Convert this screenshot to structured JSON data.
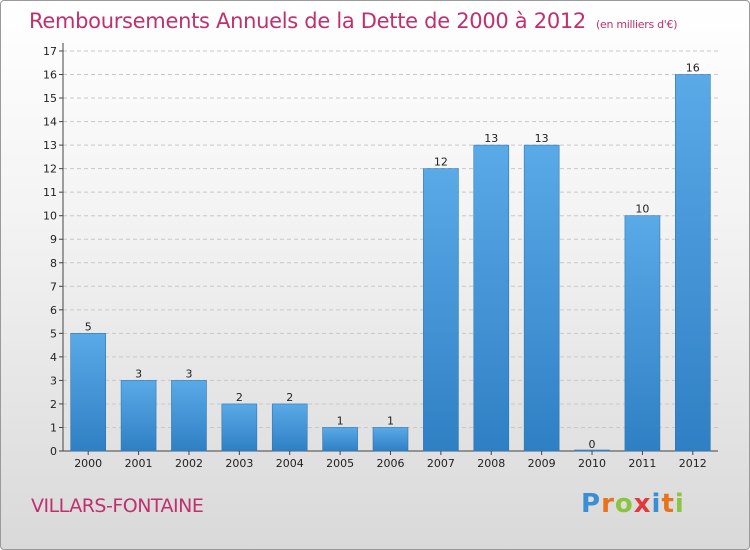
{
  "chart_data": {
    "type": "bar",
    "title": "Remboursements Annuels de la Dette de 2000 à 2012",
    "subtitle": "(en milliers d'€)",
    "categories": [
      "2000",
      "2001",
      "2002",
      "2003",
      "2004",
      "2005",
      "2006",
      "2007",
      "2008",
      "2009",
      "2010",
      "2011",
      "2012"
    ],
    "values": [
      5,
      3,
      3,
      2,
      2,
      1,
      1,
      12,
      13,
      13,
      0,
      10,
      16
    ],
    "ylim": [
      0,
      17
    ],
    "yticks": [
      0,
      1,
      2,
      3,
      4,
      5,
      6,
      7,
      8,
      9,
      10,
      11,
      12,
      13,
      14,
      15,
      16,
      17
    ],
    "xlabel": "",
    "ylabel": "",
    "grid": true,
    "bar_color": "#4a9de0"
  },
  "place": "VILLARS-FONTAINE",
  "logo": {
    "text": "Proxiti",
    "letter_colors": [
      "#3a8fd4",
      "#e8721e",
      "#8bc43f",
      "#e23a3a",
      "#3a8fd4",
      "#e8721e",
      "#8bc43f"
    ]
  }
}
